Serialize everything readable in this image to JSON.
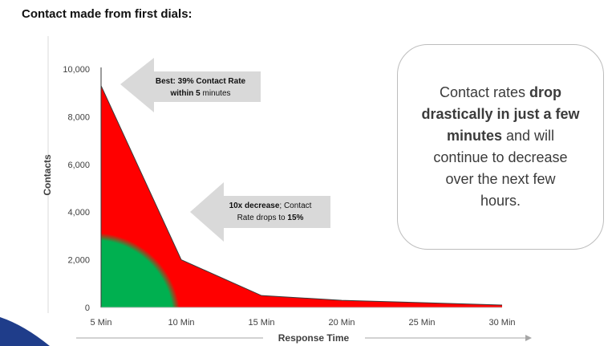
{
  "page_title": "Contact made from first dials:",
  "note_box": {
    "line1_pre": "Contact rates ",
    "line1_bold": "drop",
    "line2_bold": "drastically in just a few",
    "line3_bold": "minutes",
    "line3_post": " and will",
    "line4": "continue to decrease",
    "line5": "over the next few",
    "line6": "hours."
  },
  "callout_best": {
    "bold": "Best: 39% Contact Rate",
    "line2_bold": "within 5",
    "line2_post": " minutes"
  },
  "callout_decrease": {
    "bold": "10x decrease",
    "post": "; Contact",
    "line2_pre": "Rate drops to ",
    "line2_bold": "15%"
  },
  "colors": {
    "best_zone": "#00b050",
    "decline_zone": "#ff0000",
    "arrow": "#d9d9d9",
    "axis": "#7f7f7f"
  },
  "chart_data": {
    "type": "area",
    "title": "",
    "xlabel": "Response Time",
    "ylabel": "Contacts",
    "x": [
      "5 Min",
      "10 Min",
      "15 Min",
      "20 Min",
      "25 Min",
      "30 Min"
    ],
    "values": [
      9300,
      2000,
      500,
      300,
      200,
      100
    ],
    "ylim": [
      0,
      10000
    ],
    "yticks": [
      "0",
      "2,000",
      "4,000",
      "6,000",
      "8,000",
      "10,000"
    ],
    "grid": false,
    "legend": "none"
  }
}
